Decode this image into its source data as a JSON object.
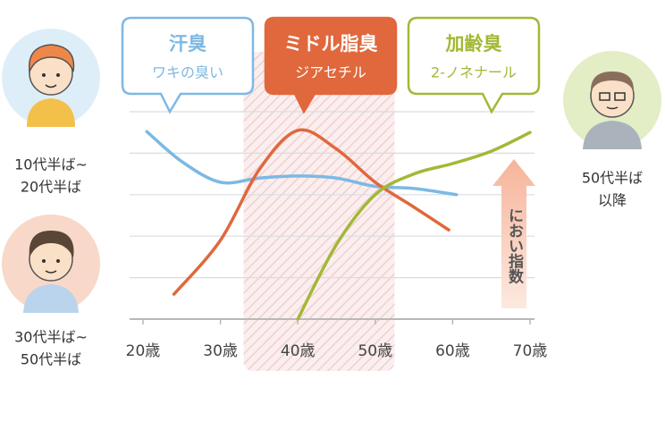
{
  "chart_data": {
    "type": "line",
    "xlim": [
      20,
      70
    ],
    "xticks": [
      {
        "value": 20,
        "label": "20歳"
      },
      {
        "value": 30,
        "label": "30歳"
      },
      {
        "value": 40,
        "label": "40歳"
      },
      {
        "value": 50,
        "label": "50歳"
      },
      {
        "value": 60,
        "label": "60歳"
      },
      {
        "value": 70,
        "label": "70歳"
      }
    ],
    "ylim": [
      0,
      5
    ],
    "yticks": [
      0,
      1,
      2,
      3,
      4,
      5
    ],
    "grid": true,
    "y_label": "におい指数",
    "highlight_xlim": [
      33,
      52.5
    ],
    "series": [
      {
        "name": "汗臭",
        "note": "ワキの臭い",
        "color": "#7cb9e4",
        "x": [
          20.5,
          25,
          30,
          35,
          40,
          45,
          50,
          55,
          60.5
        ],
        "values": [
          4.52,
          3.8,
          3.3,
          3.4,
          3.45,
          3.4,
          3.2,
          3.15,
          3.0
        ]
      },
      {
        "name": "ミドル脂臭",
        "note": "ジアセチル",
        "color": "#e0683c",
        "x": [
          24,
          30,
          35,
          40,
          45,
          50,
          55,
          59.5
        ],
        "values": [
          0.6,
          1.9,
          3.6,
          4.55,
          4.1,
          3.3,
          2.7,
          2.15
        ]
      },
      {
        "name": "加齢臭",
        "note": "2-ノネナール",
        "color": "#a3b836",
        "x": [
          40,
          45,
          50,
          55,
          60,
          65,
          70
        ],
        "values": [
          0,
          1.8,
          3.0,
          3.5,
          3.75,
          4.05,
          4.5
        ]
      }
    ],
    "people": [
      {
        "lines": [
          "10代半ば~",
          "20代半ば"
        ]
      },
      {
        "lines": [
          "30代半ば~",
          "50代半ば"
        ]
      },
      {
        "lines": [
          "50代半ば",
          "以降"
        ]
      }
    ]
  }
}
